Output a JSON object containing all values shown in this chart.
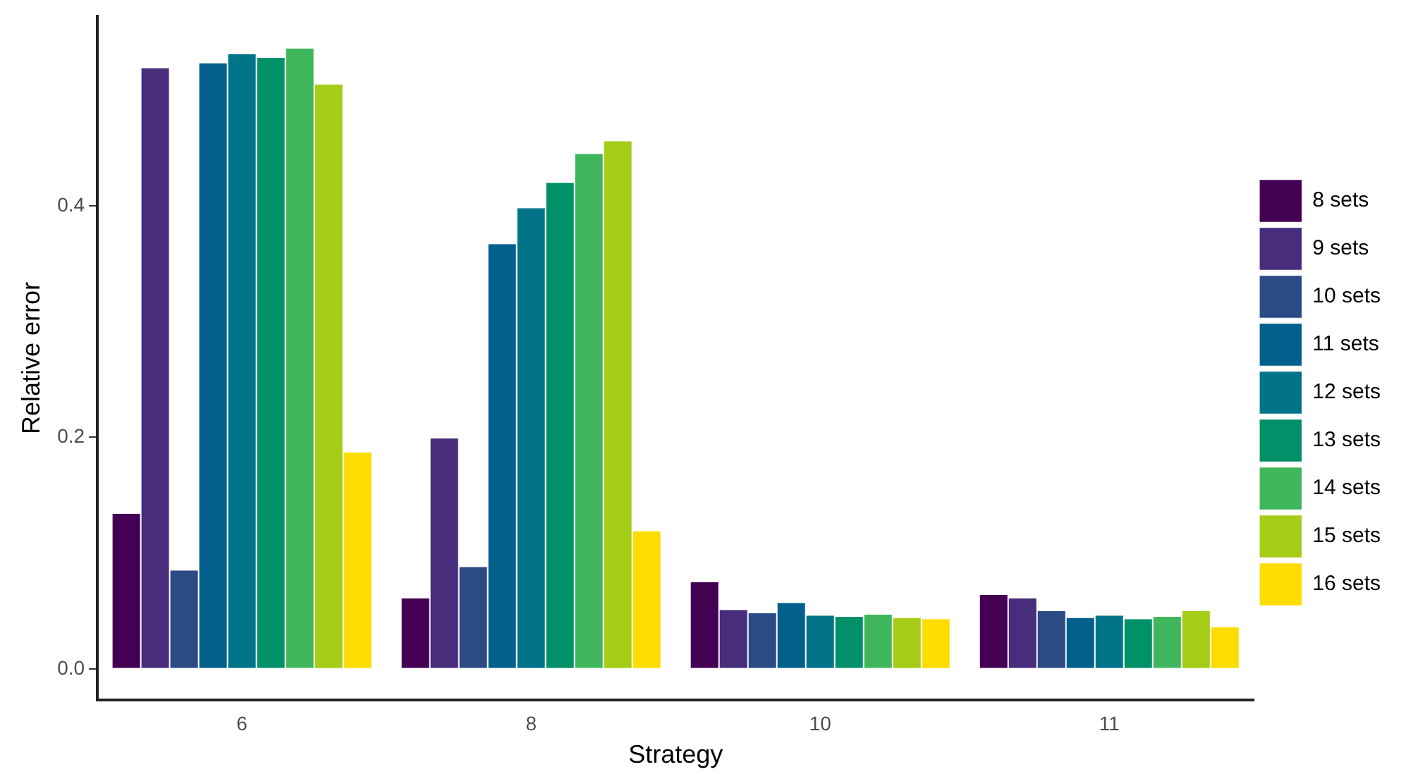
{
  "chart_data": {
    "type": "bar",
    "xlabel": "Strategy",
    "ylabel": "Relative error",
    "categories": [
      "6",
      "8",
      "10",
      "11"
    ],
    "ylim": [
      -0.027,
      0.564
    ],
    "yticks": [
      {
        "value": 0,
        "label": "0.0"
      },
      0.2,
      0.4
    ],
    "grid": false,
    "legend": "right",
    "series": [
      {
        "name": "8 sets",
        "color": "#440154",
        "values": [
          0.134,
          0.061,
          0.075,
          0.064
        ]
      },
      {
        "name": "9 sets",
        "color": "#472d7b",
        "values": [
          0.519,
          0.199,
          0.051,
          0.061
        ]
      },
      {
        "name": "10 sets",
        "color": "#2c4b85",
        "values": [
          0.085,
          0.088,
          0.048,
          0.05
        ]
      },
      {
        "name": "11 sets",
        "color": "#035f8b",
        "values": [
          0.523,
          0.367,
          0.057,
          0.044
        ]
      },
      {
        "name": "12 sets",
        "color": "#02748a",
        "values": [
          0.531,
          0.398,
          0.046,
          0.046
        ]
      },
      {
        "name": "13 sets",
        "color": "#019169",
        "values": [
          0.528,
          0.42,
          0.045,
          0.043
        ]
      },
      {
        "name": "14 sets",
        "color": "#3fb65b",
        "values": [
          0.536,
          0.445,
          0.047,
          0.045
        ]
      },
      {
        "name": "15 sets",
        "color": "#a5cc17",
        "values": [
          0.505,
          0.456,
          0.044,
          0.05
        ]
      },
      {
        "name": "16 sets",
        "color": "#fddc00",
        "values": [
          0.187,
          0.119,
          0.043,
          0.036
        ]
      }
    ]
  }
}
